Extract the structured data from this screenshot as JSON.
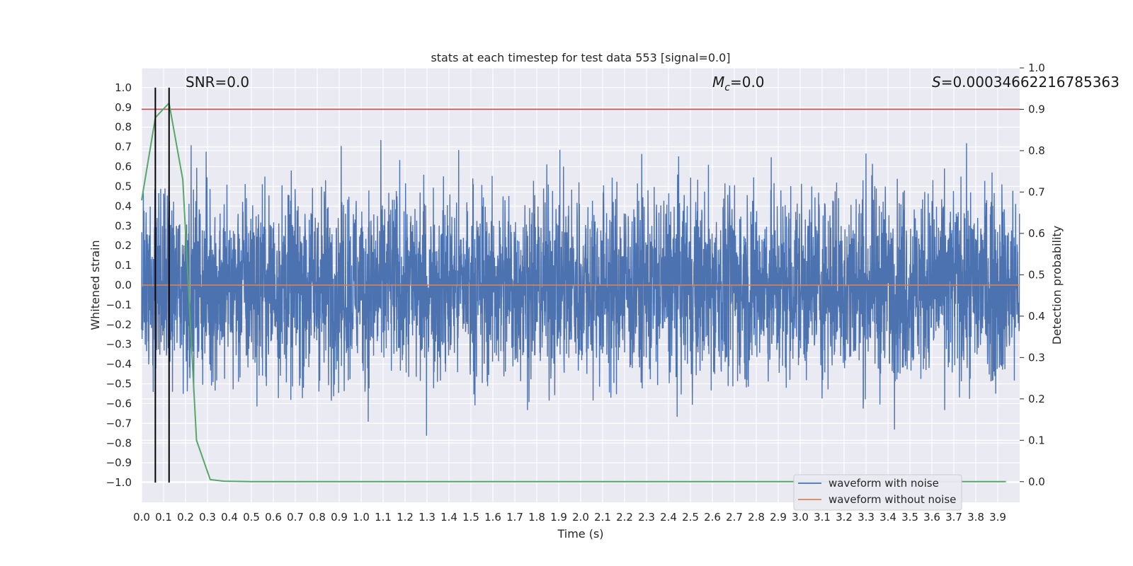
{
  "chart_data": {
    "type": "line",
    "title": "stats at each timestep for test data 553 [signal=0.0]",
    "xlabel": "Time (s)",
    "ylabel": "Whitened strain",
    "ylabel_right": "Detection probability",
    "xlim": [
      0.0,
      4.0
    ],
    "ylim": [
      -1.1,
      1.1
    ],
    "ylim_right": [
      -0.05,
      1.0
    ],
    "x_ticks": [
      "0.0",
      "0.1",
      "0.2",
      "0.3",
      "0.4",
      "0.5",
      "0.6",
      "0.7",
      "0.8",
      "0.9",
      "1.0",
      "1.1",
      "1.2",
      "1.3",
      "1.4",
      "1.5",
      "1.6",
      "1.7",
      "1.8",
      "1.9",
      "2.0",
      "2.1",
      "2.2",
      "2.3",
      "2.4",
      "2.5",
      "2.6",
      "2.7",
      "2.8",
      "2.9",
      "3.0",
      "3.1",
      "3.2",
      "3.3",
      "3.4",
      "3.5",
      "3.6",
      "3.7",
      "3.8",
      "3.9"
    ],
    "y_ticks": [
      "1.0",
      "0.9",
      "0.8",
      "0.7",
      "0.6",
      "0.5",
      "0.4",
      "0.3",
      "0.2",
      "0.1",
      "0.0",
      "−0.1",
      "−0.2",
      "−0.3",
      "−0.4",
      "−0.5",
      "−0.6",
      "−0.7",
      "−0.8",
      "−0.9",
      "−1.0"
    ],
    "y_ticks_right": [
      "1.0",
      "0.9",
      "0.8",
      "0.7",
      "0.6",
      "0.5",
      "0.4",
      "0.3",
      "0.2",
      "0.1",
      "0.0"
    ],
    "annotations": {
      "snr": "SNR=0.0",
      "mc_symbol": "M",
      "mc_sub": "c",
      "mc_value": "=0.0",
      "s_symbol": "S",
      "s_value": "=0.00034662216785363"
    },
    "grid": true,
    "legend_placement": "lower-right",
    "series": [
      {
        "name": "waveform with noise",
        "color": "#4c72b0",
        "axis": "left",
        "kind": "noise-like strain, amplitude within ±1.0"
      },
      {
        "name": "waveform without noise",
        "color": "#dd8452",
        "axis": "left",
        "y_constant": 0.0
      },
      {
        "color": "#55a868",
        "axis": "right",
        "x": [
          0.0,
          0.0625,
          0.125,
          0.1875,
          0.25,
          0.3125,
          0.375,
          0.5,
          1.0,
          2.0,
          3.0,
          3.9375
        ],
        "y": [
          0.68,
          0.88,
          0.915,
          0.73,
          0.1,
          0.005,
          0.001,
          0.0,
          0.0,
          0.0,
          0.0,
          0.0
        ]
      },
      {
        "color": "#c44e52",
        "axis": "right",
        "y_constant": 0.9
      }
    ],
    "vlines": [
      {
        "x": 0.0625,
        "color": "#000000"
      },
      {
        "x": 0.125,
        "color": "#000000"
      }
    ]
  }
}
